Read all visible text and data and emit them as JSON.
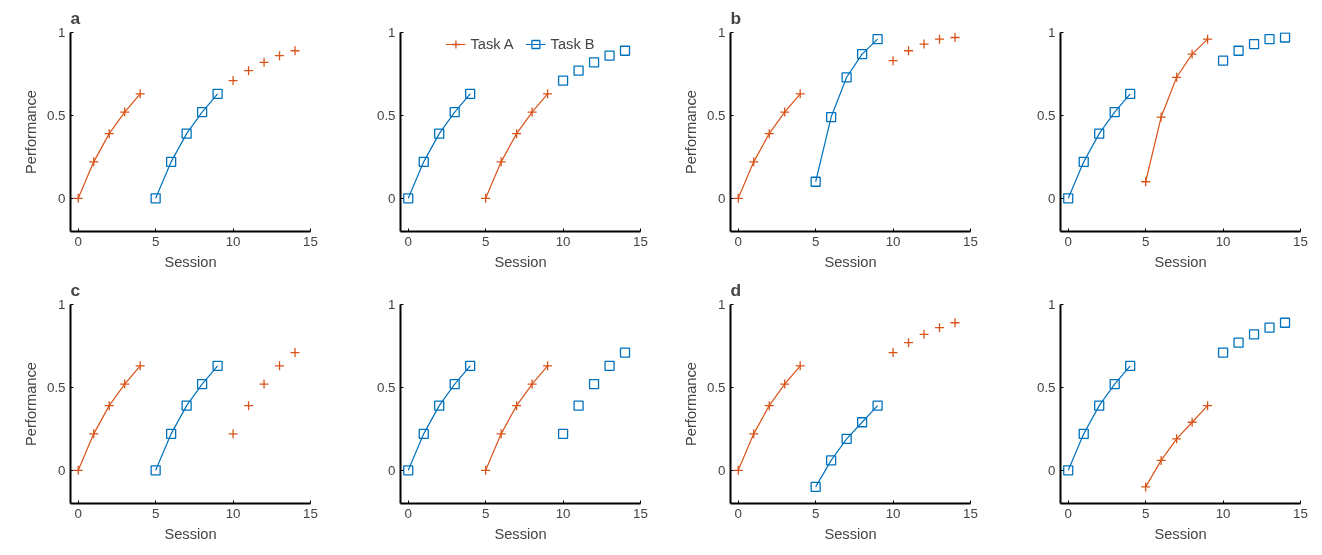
{
  "chart_data": [
    {
      "type": "line",
      "title": "a",
      "xlabel": "Session",
      "ylabel": "Performance",
      "xlim": [
        -0.5,
        15
      ],
      "ylim": [
        -0.2,
        1
      ],
      "xticks": [
        0,
        5,
        10,
        15
      ],
      "yticks": [
        0,
        0.5,
        1
      ],
      "grid": false,
      "series": [
        {
          "marker": "cross",
          "color": "#d95319",
          "x": [
            0,
            1,
            2,
            3,
            4
          ],
          "values": [
            0,
            0.22,
            0.39,
            0.52,
            0.63
          ]
        },
        {
          "type": "scatter",
          "marker": "cross",
          "color": "#d95319",
          "x": [
            10,
            11,
            12,
            13,
            14
          ],
          "values": [
            0.71,
            0.77,
            0.82,
            0.86,
            0.89
          ]
        },
        {
          "marker": "square",
          "color": "#0072bd",
          "x": [
            5,
            6,
            7,
            8,
            9
          ],
          "values": [
            0,
            0.22,
            0.39,
            0.52,
            0.63
          ]
        }
      ]
    },
    {
      "type": "line",
      "xlabel": "Session",
      "xlim": [
        -0.5,
        15
      ],
      "ylim": [
        -0.2,
        1
      ],
      "xticks": [
        0,
        5,
        10,
        15
      ],
      "yticks": [
        0,
        0.5,
        1
      ],
      "grid": false,
      "legend": "top",
      "series": [
        {
          "name": "Task A",
          "marker": "cross",
          "color": "#d95319",
          "x": [
            5,
            6,
            7,
            8,
            9
          ],
          "values": [
            0,
            0.22,
            0.39,
            0.52,
            0.63
          ]
        },
        {
          "name": "Task B",
          "marker": "square",
          "color": "#0072bd",
          "x": [
            0,
            1,
            2,
            3,
            4
          ],
          "values": [
            0,
            0.22,
            0.39,
            0.52,
            0.63
          ]
        },
        {
          "type": "scatter",
          "marker": "square",
          "color": "#0072bd",
          "x": [
            10,
            11,
            12,
            13,
            14
          ],
          "values": [
            0.71,
            0.77,
            0.82,
            0.86,
            0.89
          ]
        }
      ]
    },
    {
      "type": "line",
      "title": "b",
      "xlabel": "Session",
      "ylabel": "Performance",
      "xlim": [
        -0.5,
        15
      ],
      "ylim": [
        -0.2,
        1
      ],
      "xticks": [
        0,
        5,
        10,
        15
      ],
      "yticks": [
        0,
        0.5,
        1
      ],
      "grid": false,
      "series": [
        {
          "marker": "cross",
          "color": "#d95319",
          "x": [
            0,
            1,
            2,
            3,
            4
          ],
          "values": [
            0,
            0.22,
            0.39,
            0.52,
            0.63
          ]
        },
        {
          "type": "scatter",
          "marker": "cross",
          "color": "#d95319",
          "x": [
            10,
            11,
            12,
            13,
            14
          ],
          "values": [
            0.83,
            0.89,
            0.93,
            0.96,
            0.97
          ]
        },
        {
          "marker": "square",
          "color": "#0072bd",
          "x": [
            5,
            6,
            7,
            8,
            9
          ],
          "values": [
            0.1,
            0.49,
            0.73,
            0.87,
            0.96
          ]
        }
      ]
    },
    {
      "type": "line",
      "xlabel": "Session",
      "xlim": [
        -0.5,
        15
      ],
      "ylim": [
        -0.2,
        1
      ],
      "xticks": [
        0,
        5,
        10,
        15
      ],
      "yticks": [
        0,
        0.5,
        1
      ],
      "grid": false,
      "series": [
        {
          "marker": "cross",
          "color": "#d95319",
          "x": [
            5,
            6,
            7,
            8,
            9
          ],
          "values": [
            0.1,
            0.49,
            0.73,
            0.87,
            0.96
          ]
        },
        {
          "marker": "square",
          "color": "#0072bd",
          "x": [
            0,
            1,
            2,
            3,
            4
          ],
          "values": [
            0,
            0.22,
            0.39,
            0.52,
            0.63
          ]
        },
        {
          "type": "scatter",
          "marker": "square",
          "color": "#0072bd",
          "x": [
            10,
            11,
            12,
            13,
            14
          ],
          "values": [
            0.83,
            0.89,
            0.93,
            0.96,
            0.97
          ]
        }
      ]
    },
    {
      "type": "line",
      "title": "c",
      "xlabel": "Session",
      "ylabel": "Performance",
      "xlim": [
        -0.5,
        15
      ],
      "ylim": [
        -0.2,
        1
      ],
      "xticks": [
        0,
        5,
        10,
        15
      ],
      "yticks": [
        0,
        0.5,
        1
      ],
      "grid": false,
      "series": [
        {
          "marker": "cross",
          "color": "#d95319",
          "x": [
            0,
            1,
            2,
            3,
            4
          ],
          "values": [
            0,
            0.22,
            0.39,
            0.52,
            0.63
          ]
        },
        {
          "type": "scatter",
          "marker": "cross",
          "color": "#d95319",
          "x": [
            10,
            11,
            12,
            13,
            14
          ],
          "values": [
            0.22,
            0.39,
            0.52,
            0.63,
            0.71
          ]
        },
        {
          "marker": "square",
          "color": "#0072bd",
          "x": [
            5,
            6,
            7,
            8,
            9
          ],
          "values": [
            0,
            0.22,
            0.39,
            0.52,
            0.63
          ]
        }
      ]
    },
    {
      "type": "line",
      "xlabel": "Session",
      "xlim": [
        -0.5,
        15
      ],
      "ylim": [
        -0.2,
        1
      ],
      "xticks": [
        0,
        5,
        10,
        15
      ],
      "yticks": [
        0,
        0.5,
        1
      ],
      "grid": false,
      "series": [
        {
          "marker": "cross",
          "color": "#d95319",
          "x": [
            5,
            6,
            7,
            8,
            9
          ],
          "values": [
            0,
            0.22,
            0.39,
            0.52,
            0.63
          ]
        },
        {
          "marker": "square",
          "color": "#0072bd",
          "x": [
            0,
            1,
            2,
            3,
            4
          ],
          "values": [
            0,
            0.22,
            0.39,
            0.52,
            0.63
          ]
        },
        {
          "type": "scatter",
          "marker": "square",
          "color": "#0072bd",
          "x": [
            10,
            11,
            12,
            13,
            14
          ],
          "values": [
            0.22,
            0.39,
            0.52,
            0.63,
            0.71
          ]
        }
      ]
    },
    {
      "type": "line",
      "title": "d",
      "xlabel": "Session",
      "ylabel": "Performance",
      "xlim": [
        -0.5,
        15
      ],
      "ylim": [
        -0.2,
        1
      ],
      "xticks": [
        0,
        5,
        10,
        15
      ],
      "yticks": [
        0,
        0.5,
        1
      ],
      "grid": false,
      "series": [
        {
          "marker": "cross",
          "color": "#d95319",
          "x": [
            0,
            1,
            2,
            3,
            4
          ],
          "values": [
            0,
            0.22,
            0.39,
            0.52,
            0.63
          ]
        },
        {
          "type": "scatter",
          "marker": "cross",
          "color": "#d95319",
          "x": [
            10,
            11,
            12,
            13,
            14
          ],
          "values": [
            0.71,
            0.77,
            0.82,
            0.86,
            0.89
          ]
        },
        {
          "marker": "square",
          "color": "#0072bd",
          "x": [
            5,
            6,
            7,
            8,
            9
          ],
          "values": [
            -0.1,
            0.06,
            0.19,
            0.29,
            0.39
          ]
        }
      ]
    },
    {
      "type": "line",
      "xlabel": "Session",
      "xlim": [
        -0.5,
        15
      ],
      "ylim": [
        -0.2,
        1
      ],
      "xticks": [
        0,
        5,
        10,
        15
      ],
      "yticks": [
        0,
        0.5,
        1
      ],
      "grid": false,
      "series": [
        {
          "marker": "cross",
          "color": "#d95319",
          "x": [
            5,
            6,
            7,
            8,
            9
          ],
          "values": [
            -0.1,
            0.06,
            0.19,
            0.29,
            0.39
          ]
        },
        {
          "marker": "square",
          "color": "#0072bd",
          "x": [
            0,
            1,
            2,
            3,
            4
          ],
          "values": [
            0,
            0.22,
            0.39,
            0.52,
            0.63
          ]
        },
        {
          "type": "scatter",
          "marker": "square",
          "color": "#0072bd",
          "x": [
            10,
            11,
            12,
            13,
            14
          ],
          "values": [
            0.71,
            0.77,
            0.82,
            0.86,
            0.89
          ]
        }
      ]
    }
  ]
}
